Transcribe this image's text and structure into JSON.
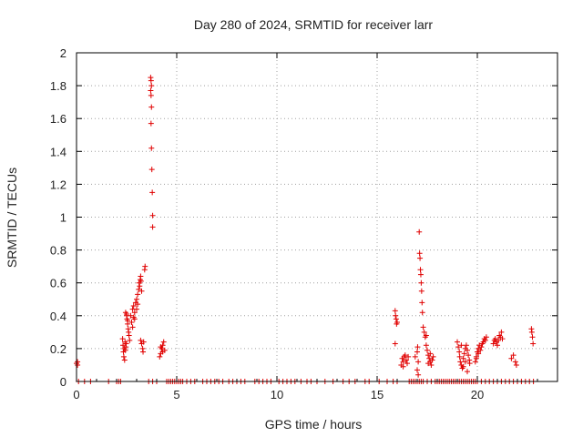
{
  "chart_data": {
    "type": "scatter",
    "title": "Day 280 of 2024, SRMTID for receiver larr",
    "xlabel": "GPS time / hours",
    "ylabel": "SRMTID / TECUs",
    "xlim": [
      0,
      24
    ],
    "ylim": [
      0,
      2
    ],
    "xticks": [
      0,
      5,
      10,
      15,
      20
    ],
    "xtick_labels": [
      "0",
      "5",
      "10",
      "15",
      "20"
    ],
    "yticks": [
      0,
      0.2,
      0.4,
      0.6,
      0.8,
      1,
      1.2,
      1.4,
      1.6,
      1.8,
      2
    ],
    "ytick_labels": [
      "0",
      "0.2",
      "0.4",
      "0.6",
      "0.8",
      "1",
      "1.2",
      "1.4",
      "1.6",
      "1.8",
      "2"
    ],
    "grid": true,
    "marker": "+",
    "color": "#e00000",
    "series": [
      {
        "name": "SRMTID",
        "points": [
          [
            0.0,
            0.11
          ],
          [
            0.05,
            0.12
          ],
          [
            0.05,
            0.1
          ],
          [
            0.1,
            0.0
          ],
          [
            0.4,
            0.0
          ],
          [
            0.7,
            0.0
          ],
          [
            1.6,
            0.0
          ],
          [
            2.0,
            0.0
          ],
          [
            2.1,
            0.0
          ],
          [
            2.2,
            0.0
          ],
          [
            2.3,
            0.26
          ],
          [
            2.32,
            0.22
          ],
          [
            2.34,
            0.18
          ],
          [
            2.36,
            0.15
          ],
          [
            2.38,
            0.2
          ],
          [
            2.4,
            0.13
          ],
          [
            2.42,
            0.24
          ],
          [
            2.44,
            0.19
          ],
          [
            2.46,
            0.21
          ],
          [
            2.48,
            0.23
          ],
          [
            2.45,
            0.42
          ],
          [
            2.5,
            0.4
          ],
          [
            2.52,
            0.38
          ],
          [
            2.55,
            0.35
          ],
          [
            2.58,
            0.32
          ],
          [
            2.6,
            0.3
          ],
          [
            2.62,
            0.28
          ],
          [
            2.65,
            0.25
          ],
          [
            2.5,
            0.41
          ],
          [
            2.55,
            0.37
          ],
          [
            2.7,
            0.4
          ],
          [
            2.75,
            0.36
          ],
          [
            2.8,
            0.44
          ],
          [
            2.85,
            0.46
          ],
          [
            2.9,
            0.42
          ],
          [
            2.95,
            0.48
          ],
          [
            3.0,
            0.5
          ],
          [
            3.05,
            0.53
          ],
          [
            3.1,
            0.56
          ],
          [
            3.12,
            0.6
          ],
          [
            3.15,
            0.58
          ],
          [
            3.18,
            0.62
          ],
          [
            3.2,
            0.64
          ],
          [
            3.22,
            0.61
          ],
          [
            3.25,
            0.55
          ],
          [
            2.9,
            0.38
          ],
          [
            3.0,
            0.44
          ],
          [
            3.05,
            0.47
          ],
          [
            2.8,
            0.33
          ],
          [
            2.85,
            0.39
          ],
          [
            3.2,
            0.25
          ],
          [
            3.25,
            0.23
          ],
          [
            3.3,
            0.2
          ],
          [
            3.32,
            0.18
          ],
          [
            3.35,
            0.24
          ],
          [
            3.4,
            0.68
          ],
          [
            3.42,
            0.7
          ],
          [
            3.6,
            0.0
          ],
          [
            3.8,
            0.0
          ],
          [
            4.0,
            0.0
          ],
          [
            3.7,
            1.85
          ],
          [
            3.72,
            1.83
          ],
          [
            3.74,
            1.8
          ],
          [
            3.7,
            1.77
          ],
          [
            3.72,
            1.74
          ],
          [
            3.74,
            1.67
          ],
          [
            3.72,
            1.57
          ],
          [
            3.74,
            1.42
          ],
          [
            3.76,
            1.29
          ],
          [
            3.78,
            1.15
          ],
          [
            3.8,
            1.01
          ],
          [
            3.8,
            0.94
          ],
          [
            4.15,
            0.15
          ],
          [
            4.2,
            0.17
          ],
          [
            4.25,
            0.2
          ],
          [
            4.3,
            0.22
          ],
          [
            4.35,
            0.24
          ],
          [
            4.4,
            0.19
          ],
          [
            4.3,
            0.18
          ],
          [
            4.2,
            0.21
          ],
          [
            4.5,
            0.0
          ],
          [
            4.6,
            0.0
          ],
          [
            4.7,
            0.0
          ],
          [
            4.8,
            0.0
          ],
          [
            4.9,
            0.0
          ],
          [
            5.0,
            0.0
          ],
          [
            5.1,
            0.0
          ],
          [
            5.2,
            0.0
          ],
          [
            5.3,
            0.0
          ],
          [
            5.5,
            0.0
          ],
          [
            5.7,
            0.0
          ],
          [
            5.9,
            0.0
          ],
          [
            6.3,
            0.0
          ],
          [
            6.5,
            0.0
          ],
          [
            6.7,
            0.0
          ],
          [
            6.9,
            0.0
          ],
          [
            7.1,
            0.0
          ],
          [
            7.3,
            0.0
          ],
          [
            7.6,
            0.0
          ],
          [
            7.8,
            0.0
          ],
          [
            8.0,
            0.0
          ],
          [
            8.2,
            0.0
          ],
          [
            8.4,
            0.0
          ],
          [
            8.9,
            0.0
          ],
          [
            9.1,
            0.0
          ],
          [
            9.3,
            0.0
          ],
          [
            9.5,
            0.0
          ],
          [
            9.7,
            0.0
          ],
          [
            10.1,
            0.0
          ],
          [
            10.3,
            0.0
          ],
          [
            10.5,
            0.0
          ],
          [
            10.7,
            0.0
          ],
          [
            10.9,
            0.0
          ],
          [
            11.2,
            0.0
          ],
          [
            11.5,
            0.0
          ],
          [
            11.7,
            0.0
          ],
          [
            12.0,
            0.0
          ],
          [
            12.4,
            0.0
          ],
          [
            12.8,
            0.0
          ],
          [
            13.3,
            0.0
          ],
          [
            13.6,
            0.0
          ],
          [
            13.9,
            0.0
          ],
          [
            14.4,
            0.0
          ],
          [
            14.6,
            0.0
          ],
          [
            15.1,
            0.0
          ],
          [
            15.5,
            0.0
          ],
          [
            15.8,
            0.0
          ],
          [
            16.0,
            0.0
          ],
          [
            15.9,
            0.43
          ],
          [
            15.92,
            0.4
          ],
          [
            15.95,
            0.38
          ],
          [
            15.97,
            0.35
          ],
          [
            16.0,
            0.36
          ],
          [
            15.9,
            0.23
          ],
          [
            16.2,
            0.1
          ],
          [
            16.25,
            0.14
          ],
          [
            16.3,
            0.12
          ],
          [
            16.35,
            0.15
          ],
          [
            16.4,
            0.16
          ],
          [
            16.45,
            0.13
          ],
          [
            16.5,
            0.11
          ],
          [
            16.55,
            0.15
          ],
          [
            16.3,
            0.09
          ],
          [
            16.6,
            0.0
          ],
          [
            16.7,
            0.0
          ],
          [
            16.8,
            0.0
          ],
          [
            16.9,
            0.0
          ],
          [
            17.0,
            0.0
          ],
          [
            17.1,
            0.0
          ],
          [
            17.2,
            0.0
          ],
          [
            17.3,
            0.0
          ],
          [
            17.5,
            0.0
          ],
          [
            17.7,
            0.0
          ],
          [
            16.9,
            0.15
          ],
          [
            17.0,
            0.18
          ],
          [
            17.02,
            0.21
          ],
          [
            17.05,
            0.12
          ],
          [
            17.0,
            0.07
          ],
          [
            17.05,
            0.04
          ],
          [
            17.1,
            0.91
          ],
          [
            17.12,
            0.78
          ],
          [
            17.14,
            0.75
          ],
          [
            17.16,
            0.68
          ],
          [
            17.18,
            0.65
          ],
          [
            17.2,
            0.6
          ],
          [
            17.22,
            0.55
          ],
          [
            17.24,
            0.48
          ],
          [
            17.26,
            0.42
          ],
          [
            17.3,
            0.33
          ],
          [
            17.35,
            0.3
          ],
          [
            17.4,
            0.27
          ],
          [
            17.45,
            0.28
          ],
          [
            17.5,
            0.19
          ],
          [
            17.55,
            0.16
          ],
          [
            17.6,
            0.14
          ],
          [
            17.65,
            0.12
          ],
          [
            17.7,
            0.1
          ],
          [
            17.75,
            0.13
          ],
          [
            17.8,
            0.15
          ],
          [
            17.45,
            0.22
          ],
          [
            17.55,
            0.11
          ],
          [
            17.65,
            0.17
          ],
          [
            17.9,
            0.0
          ],
          [
            18.0,
            0.0
          ],
          [
            18.1,
            0.0
          ],
          [
            18.2,
            0.0
          ],
          [
            18.3,
            0.0
          ],
          [
            18.4,
            0.0
          ],
          [
            18.5,
            0.0
          ],
          [
            18.6,
            0.0
          ],
          [
            18.7,
            0.0
          ],
          [
            18.8,
            0.0
          ],
          [
            18.9,
            0.0
          ],
          [
            19.0,
            0.0
          ],
          [
            19.1,
            0.0
          ],
          [
            19.2,
            0.0
          ],
          [
            19.3,
            0.0
          ],
          [
            19.4,
            0.0
          ],
          [
            19.5,
            0.0
          ],
          [
            19.6,
            0.0
          ],
          [
            19.7,
            0.0
          ],
          [
            19.8,
            0.0
          ],
          [
            19.9,
            0.0
          ],
          [
            20.0,
            0.0
          ],
          [
            20.2,
            0.0
          ],
          [
            20.4,
            0.0
          ],
          [
            20.6,
            0.0
          ],
          [
            20.8,
            0.0
          ],
          [
            21.0,
            0.0
          ],
          [
            21.2,
            0.0
          ],
          [
            21.4,
            0.0
          ],
          [
            21.6,
            0.0
          ],
          [
            21.8,
            0.0
          ],
          [
            22.0,
            0.0
          ],
          [
            22.2,
            0.0
          ],
          [
            22.4,
            0.0
          ],
          [
            22.6,
            0.0
          ],
          [
            22.8,
            0.0
          ],
          [
            19.0,
            0.24
          ],
          [
            19.05,
            0.21
          ],
          [
            19.1,
            0.18
          ],
          [
            19.12,
            0.15
          ],
          [
            19.15,
            0.12
          ],
          [
            19.2,
            0.1
          ],
          [
            19.25,
            0.08
          ],
          [
            19.3,
            0.14
          ],
          [
            19.35,
            0.17
          ],
          [
            19.4,
            0.2
          ],
          [
            19.45,
            0.22
          ],
          [
            19.5,
            0.19
          ],
          [
            19.55,
            0.16
          ],
          [
            19.6,
            0.13
          ],
          [
            19.62,
            0.11
          ],
          [
            19.2,
            0.22
          ],
          [
            19.3,
            0.09
          ],
          [
            19.4,
            0.12
          ],
          [
            19.5,
            0.06
          ],
          [
            19.9,
            0.12
          ],
          [
            19.95,
            0.15
          ],
          [
            20.0,
            0.18
          ],
          [
            20.05,
            0.2
          ],
          [
            20.1,
            0.22
          ],
          [
            20.15,
            0.19
          ],
          [
            20.2,
            0.21
          ],
          [
            20.25,
            0.23
          ],
          [
            20.3,
            0.24
          ],
          [
            20.35,
            0.26
          ],
          [
            20.4,
            0.25
          ],
          [
            20.45,
            0.27
          ],
          [
            19.95,
            0.14
          ],
          [
            20.05,
            0.17
          ],
          [
            20.8,
            0.23
          ],
          [
            20.85,
            0.25
          ],
          [
            20.9,
            0.26
          ],
          [
            20.95,
            0.24
          ],
          [
            21.0,
            0.22
          ],
          [
            21.05,
            0.25
          ],
          [
            21.1,
            0.28
          ],
          [
            21.15,
            0.27
          ],
          [
            21.2,
            0.3
          ],
          [
            21.25,
            0.26
          ],
          [
            21.7,
            0.14
          ],
          [
            21.8,
            0.16
          ],
          [
            21.9,
            0.12
          ],
          [
            21.95,
            0.1
          ],
          [
            22.7,
            0.32
          ],
          [
            22.72,
            0.3
          ],
          [
            22.75,
            0.27
          ],
          [
            22.78,
            0.23
          ]
        ]
      }
    ]
  }
}
